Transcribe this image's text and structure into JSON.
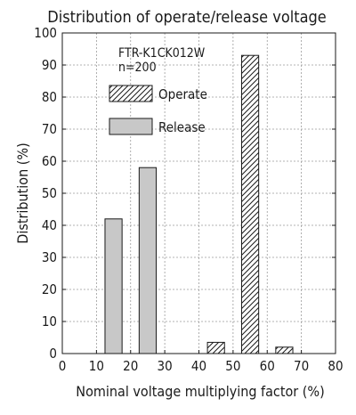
{
  "chart_data": {
    "type": "bar",
    "title": "Distribution of operate/release voltage",
    "xlabel": "Nominal voltage multiplying factor (%)",
    "ylabel": "Distribution (%)",
    "xlim": [
      0,
      80
    ],
    "ylim": [
      0,
      100
    ],
    "xticks": [
      0,
      10,
      20,
      30,
      40,
      50,
      60,
      70,
      80
    ],
    "yticks": [
      0,
      10,
      20,
      30,
      40,
      50,
      60,
      70,
      80,
      90,
      100
    ],
    "grid": true,
    "bin_width": 5,
    "annotation": {
      "model": "FTR-K1CK012W",
      "sample": "n=200"
    },
    "legend_position": "top-left",
    "series": [
      {
        "name": "Operate",
        "pattern": "diagonal-hatch",
        "bins": [
          {
            "x": 45,
            "value": 3.5
          },
          {
            "x": 55,
            "value": 93
          },
          {
            "x": 65,
            "value": 2
          }
        ]
      },
      {
        "name": "Release",
        "fill": "#c8c8c8",
        "bins": [
          {
            "x": 15,
            "value": 42
          },
          {
            "x": 25,
            "value": 58
          }
        ]
      }
    ]
  }
}
